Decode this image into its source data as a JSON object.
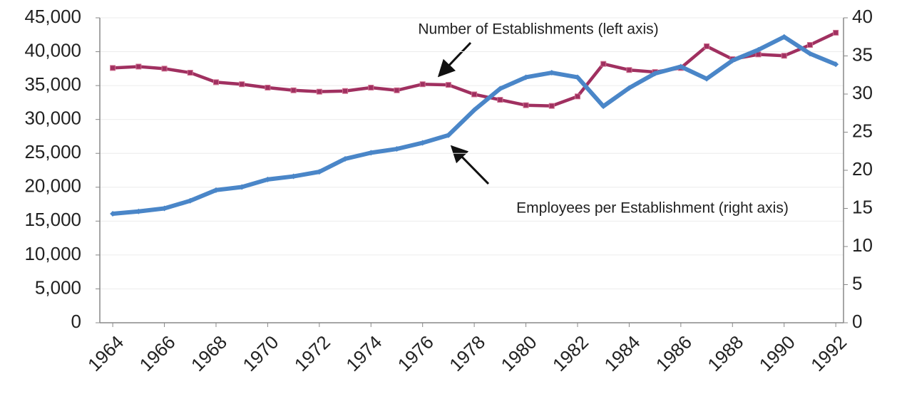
{
  "chart_data": {
    "type": "line",
    "x": [
      1964,
      1965,
      1966,
      1967,
      1968,
      1969,
      1970,
      1971,
      1972,
      1973,
      1974,
      1975,
      1976,
      1977,
      1978,
      1979,
      1980,
      1981,
      1982,
      1983,
      1984,
      1985,
      1986,
      1987,
      1988,
      1989,
      1990,
      1991,
      1992
    ],
    "xlim": [
      1963.5,
      1992.3
    ],
    "xticks": [
      1964,
      1966,
      1968,
      1970,
      1972,
      1974,
      1976,
      1978,
      1980,
      1982,
      1984,
      1986,
      1988,
      1990,
      1992
    ],
    "ylim": [
      0,
      45000
    ],
    "yticks": [
      0,
      {
        "value": 5000,
        "label": "5,000"
      },
      {
        "value": 10000,
        "label": "10,000"
      },
      {
        "value": 15000,
        "label": "15,000"
      },
      {
        "value": 20000,
        "label": "20,000"
      },
      {
        "value": 25000,
        "label": "25,000"
      },
      {
        "value": 30000,
        "label": "30,000"
      },
      {
        "value": 35000,
        "label": "35,000"
      },
      {
        "value": 40000,
        "label": "40,000"
      },
      {
        "value": 45000,
        "label": "45,000"
      }
    ],
    "y2lim": [
      0,
      40
    ],
    "y2ticks": [
      0,
      5,
      10,
      15,
      20,
      25,
      30,
      35,
      40
    ],
    "grid": true,
    "series": [
      {
        "color": "#a03060",
        "marker": "square",
        "values": [
          37600,
          37800,
          37500,
          36900,
          35500,
          35200,
          34700,
          34300,
          34100,
          34200,
          34700,
          34300,
          35200,
          35100,
          33700,
          32900,
          32100,
          32000,
          33400,
          38200,
          37300,
          37000,
          37600,
          40800,
          38900,
          39600,
          39400,
          41000,
          42800
        ]
      },
      {
        "color": "#4a86c8",
        "marker": "diamond",
        "axis": "y2",
        "values": [
          14.3,
          14.6,
          15.0,
          16.0,
          17.4,
          17.8,
          18.8,
          19.2,
          19.8,
          21.5,
          22.3,
          22.8,
          23.6,
          24.6,
          27.9,
          30.7,
          32.2,
          32.8,
          32.2,
          28.4,
          30.8,
          32.7,
          33.6,
          32.0,
          34.4,
          35.8,
          37.5,
          35.3,
          33.9
        ]
      }
    ],
    "annotations": [
      "Number of Establishments (left axis)",
      "Employees per Establishment (right axis)"
    ]
  }
}
